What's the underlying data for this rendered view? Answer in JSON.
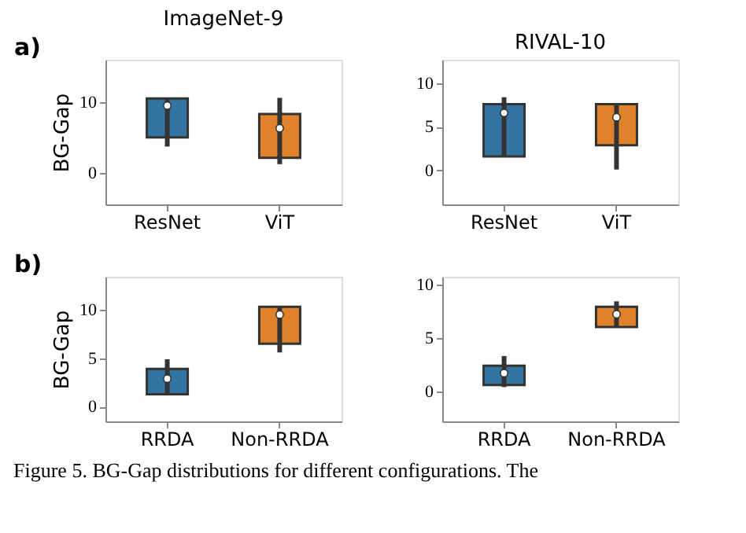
{
  "chart_data": [
    {
      "type": "box",
      "title": "ImageNet-9",
      "ylabel": "BG-Gap",
      "categories": [
        "ResNet",
        "ViT"
      ],
      "colors": [
        "#3274a1",
        "#e1812c"
      ],
      "ylim": [
        -4.5,
        16
      ],
      "yticks": [
        0,
        10
      ],
      "grid": false,
      "annotations": [
        "a)"
      ],
      "boxes": [
        {
          "low": 3.7,
          "q1": 5,
          "median": 9.5,
          "q3": 10.5,
          "high": 10.5
        },
        {
          "low": 1.2,
          "q1": 2.1,
          "median": 6.3,
          "q3": 8.3,
          "high": 10.6
        }
      ]
    },
    {
      "type": "box",
      "title": "RIVAL-10",
      "categories": [
        "ResNet",
        "ViT"
      ],
      "colors": [
        "#3274a1",
        "#e1812c"
      ],
      "ylim": [
        -3.9,
        12.7
      ],
      "yticks": [
        0,
        5,
        10
      ],
      "grid": false,
      "boxes": [
        {
          "low": 1.6,
          "q1": 1.6,
          "median": 6.6,
          "q3": 7.6,
          "high": 8.4
        },
        {
          "low": 0.1,
          "q1": 2.9,
          "median": 6.1,
          "q3": 7.6,
          "high": 7.6
        }
      ]
    },
    {
      "type": "box",
      "ylabel": "BG-Gap",
      "categories": [
        "RRDA",
        "Non-RRDA"
      ],
      "colors": [
        "#3274a1",
        "#e1812c"
      ],
      "ylim": [
        -1.5,
        13.4
      ],
      "yticks": [
        0,
        5,
        10
      ],
      "grid": false,
      "annotations": [
        "b)",
        "Figure 5. BG-Gap distributions for different configurations. The"
      ],
      "boxes": [
        {
          "low": 1.3,
          "q1": 1.3,
          "median": 2.9,
          "q3": 3.9,
          "high": 4.9
        },
        {
          "low": 5.6,
          "q1": 6.5,
          "median": 9.5,
          "q3": 10.3,
          "high": 10.3
        }
      ]
    },
    {
      "type": "box",
      "categories": [
        "RRDA",
        "Non-RRDA"
      ],
      "colors": [
        "#3274a1",
        "#e1812c"
      ],
      "ylim": [
        -2.8,
        10.7
      ],
      "yticks": [
        0,
        5,
        10
      ],
      "grid": false,
      "boxes": [
        {
          "low": 0.4,
          "q1": 0.6,
          "median": 1.7,
          "q3": 2.4,
          "high": 3.3
        },
        {
          "low": 6.0,
          "q1": 6.0,
          "median": 7.2,
          "q3": 7.9,
          "high": 8.4
        }
      ]
    }
  ]
}
